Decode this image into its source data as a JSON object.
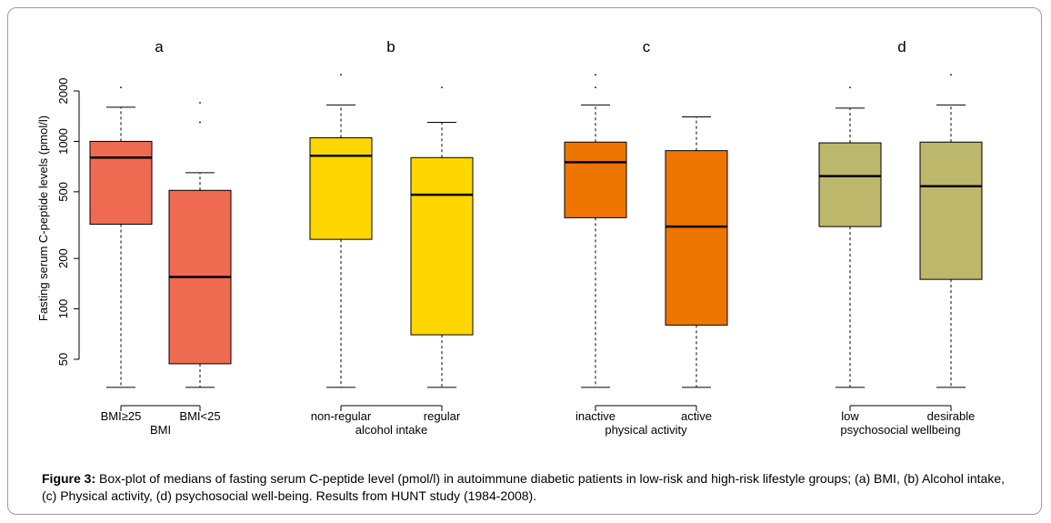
{
  "chart_data": {
    "type": "boxplot",
    "ylabel": "Fasting serum C-peptide levels (pmol/l)",
    "yscale": "log",
    "yticks": [
      50,
      100,
      200,
      500,
      1000,
      2000
    ],
    "ylim": [
      34,
      2600
    ],
    "panels": [
      {
        "label": "a",
        "xlabel": "BMI",
        "color": "#ee6a50",
        "groups": [
          {
            "name": "BMI≥25",
            "whisker_low": 34,
            "q1": 320,
            "median": 800,
            "q3": 1000,
            "whisker_high": 1600,
            "outliers": [
              2100
            ]
          },
          {
            "name": "BMI<25",
            "whisker_low": 34,
            "q1": 47,
            "median": 155,
            "q3": 510,
            "whisker_high": 650,
            "outliers": [
              1300,
              1700
            ]
          }
        ]
      },
      {
        "label": "b",
        "xlabel": "alcohol intake",
        "color": "#ffd700",
        "groups": [
          {
            "name": "non-regular",
            "whisker_low": 34,
            "q1": 260,
            "median": 820,
            "q3": 1050,
            "whisker_high": 1650,
            "outliers": [
              2500
            ]
          },
          {
            "name": "regular",
            "whisker_low": 34,
            "q1": 70,
            "median": 480,
            "q3": 800,
            "whisker_high": 1300,
            "outliers": [
              2100
            ]
          }
        ]
      },
      {
        "label": "c",
        "xlabel": "physical activity",
        "color": "#ee7600",
        "groups": [
          {
            "name": "inactive",
            "whisker_low": 34,
            "q1": 350,
            "median": 750,
            "q3": 990,
            "whisker_high": 1650,
            "outliers": [
              2100,
              2500
            ]
          },
          {
            "name": "active",
            "whisker_low": 34,
            "q1": 80,
            "median": 310,
            "q3": 880,
            "whisker_high": 1400,
            "outliers": []
          }
        ]
      },
      {
        "label": "d",
        "xlabel": "psychosocial wellbeing",
        "color": "#bdb76b",
        "groups": [
          {
            "name": "low",
            "whisker_low": 34,
            "q1": 310,
            "median": 620,
            "q3": 980,
            "whisker_high": 1580,
            "outliers": [
              2100
            ]
          },
          {
            "name": "desirable",
            "whisker_low": 34,
            "q1": 150,
            "median": 540,
            "q3": 990,
            "whisker_high": 1650,
            "outliers": [
              2500
            ]
          }
        ]
      }
    ]
  },
  "caption": {
    "figure_label": "Figure 3:",
    "text": " Box-plot of medians of fasting serum C-peptide level (pmol/l) in autoimmune diabetic patients in low-risk and high-risk lifestyle groups; (a) BMI, (b) Alcohol intake, (c) Physical activity, (d) psychosocial well-being. Results from HUNT study (1984-2008)."
  }
}
